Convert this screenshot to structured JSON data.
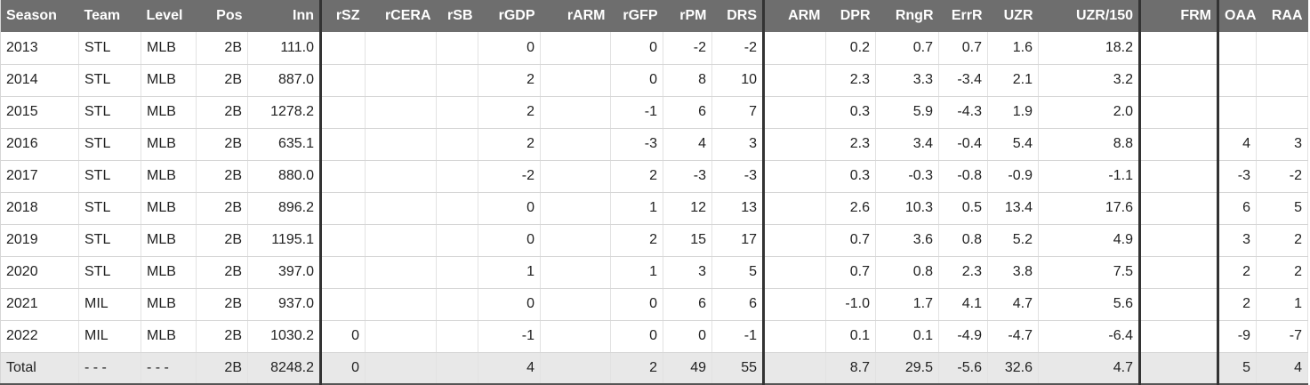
{
  "table": {
    "header": [
      "Season",
      "Team",
      "Level",
      "Pos",
      "Inn",
      "rSZ",
      "rCERA",
      "rSB",
      "rGDP",
      "rARM",
      "rGFP",
      "rPM",
      "DRS",
      "ARM",
      "DPR",
      "RngR",
      "ErrR",
      "UZR",
      "UZR/150",
      "FRM",
      "OAA",
      "RAA"
    ],
    "rows": [
      [
        "2013",
        "STL",
        "MLB",
        "2B",
        "111.0",
        null,
        null,
        null,
        "0",
        null,
        "0",
        "-2",
        "-2",
        null,
        "0.2",
        "0.7",
        "0.7",
        "1.6",
        "18.2",
        null,
        null,
        null
      ],
      [
        "2014",
        "STL",
        "MLB",
        "2B",
        "887.0",
        null,
        null,
        null,
        "2",
        null,
        "0",
        "8",
        "10",
        null,
        "2.3",
        "3.3",
        "-3.4",
        "2.1",
        "3.2",
        null,
        null,
        null
      ],
      [
        "2015",
        "STL",
        "MLB",
        "2B",
        "1278.2",
        null,
        null,
        null,
        "2",
        null,
        "-1",
        "6",
        "7",
        null,
        "0.3",
        "5.9",
        "-4.3",
        "1.9",
        "2.0",
        null,
        null,
        null
      ],
      [
        "2016",
        "STL",
        "MLB",
        "2B",
        "635.1",
        null,
        null,
        null,
        "2",
        null,
        "-3",
        "4",
        "3",
        null,
        "2.3",
        "3.4",
        "-0.4",
        "5.4",
        "8.8",
        null,
        "4",
        "3"
      ],
      [
        "2017",
        "STL",
        "MLB",
        "2B",
        "880.0",
        null,
        null,
        null,
        "-2",
        null,
        "2",
        "-3",
        "-3",
        null,
        "0.3",
        "-0.3",
        "-0.8",
        "-0.9",
        "-1.1",
        null,
        "-3",
        "-2"
      ],
      [
        "2018",
        "STL",
        "MLB",
        "2B",
        "896.2",
        null,
        null,
        null,
        "0",
        null,
        "1",
        "12",
        "13",
        null,
        "2.6",
        "10.3",
        "0.5",
        "13.4",
        "17.6",
        null,
        "6",
        "5"
      ],
      [
        "2019",
        "STL",
        "MLB",
        "2B",
        "1195.1",
        null,
        null,
        null,
        "0",
        null,
        "2",
        "15",
        "17",
        null,
        "0.7",
        "3.6",
        "0.8",
        "5.2",
        "4.9",
        null,
        "3",
        "2"
      ],
      [
        "2020",
        "STL",
        "MLB",
        "2B",
        "397.0",
        null,
        null,
        null,
        "1",
        null,
        "1",
        "3",
        "5",
        null,
        "0.7",
        "0.8",
        "2.3",
        "3.8",
        "7.5",
        null,
        "2",
        "2"
      ],
      [
        "2021",
        "MIL",
        "MLB",
        "2B",
        "937.0",
        null,
        null,
        null,
        "0",
        null,
        "0",
        "6",
        "6",
        null,
        "-1.0",
        "1.7",
        "4.1",
        "4.7",
        "5.6",
        null,
        "2",
        "1"
      ],
      [
        "2022",
        "MIL",
        "MLB",
        "2B",
        "1030.2",
        "0",
        null,
        null,
        "-1",
        null,
        "0",
        "0",
        "-1",
        null,
        "0.1",
        "0.1",
        "-4.9",
        "-4.7",
        "-6.4",
        null,
        "-9",
        "-7"
      ]
    ],
    "total": [
      "Total",
      "- - -",
      "- - -",
      "2B",
      "8248.2",
      "0",
      null,
      null,
      "4",
      null,
      "2",
      "49",
      "55",
      null,
      "8.7",
      "29.5",
      "-5.6",
      "32.6",
      "4.7",
      null,
      "5",
      "4"
    ]
  }
}
